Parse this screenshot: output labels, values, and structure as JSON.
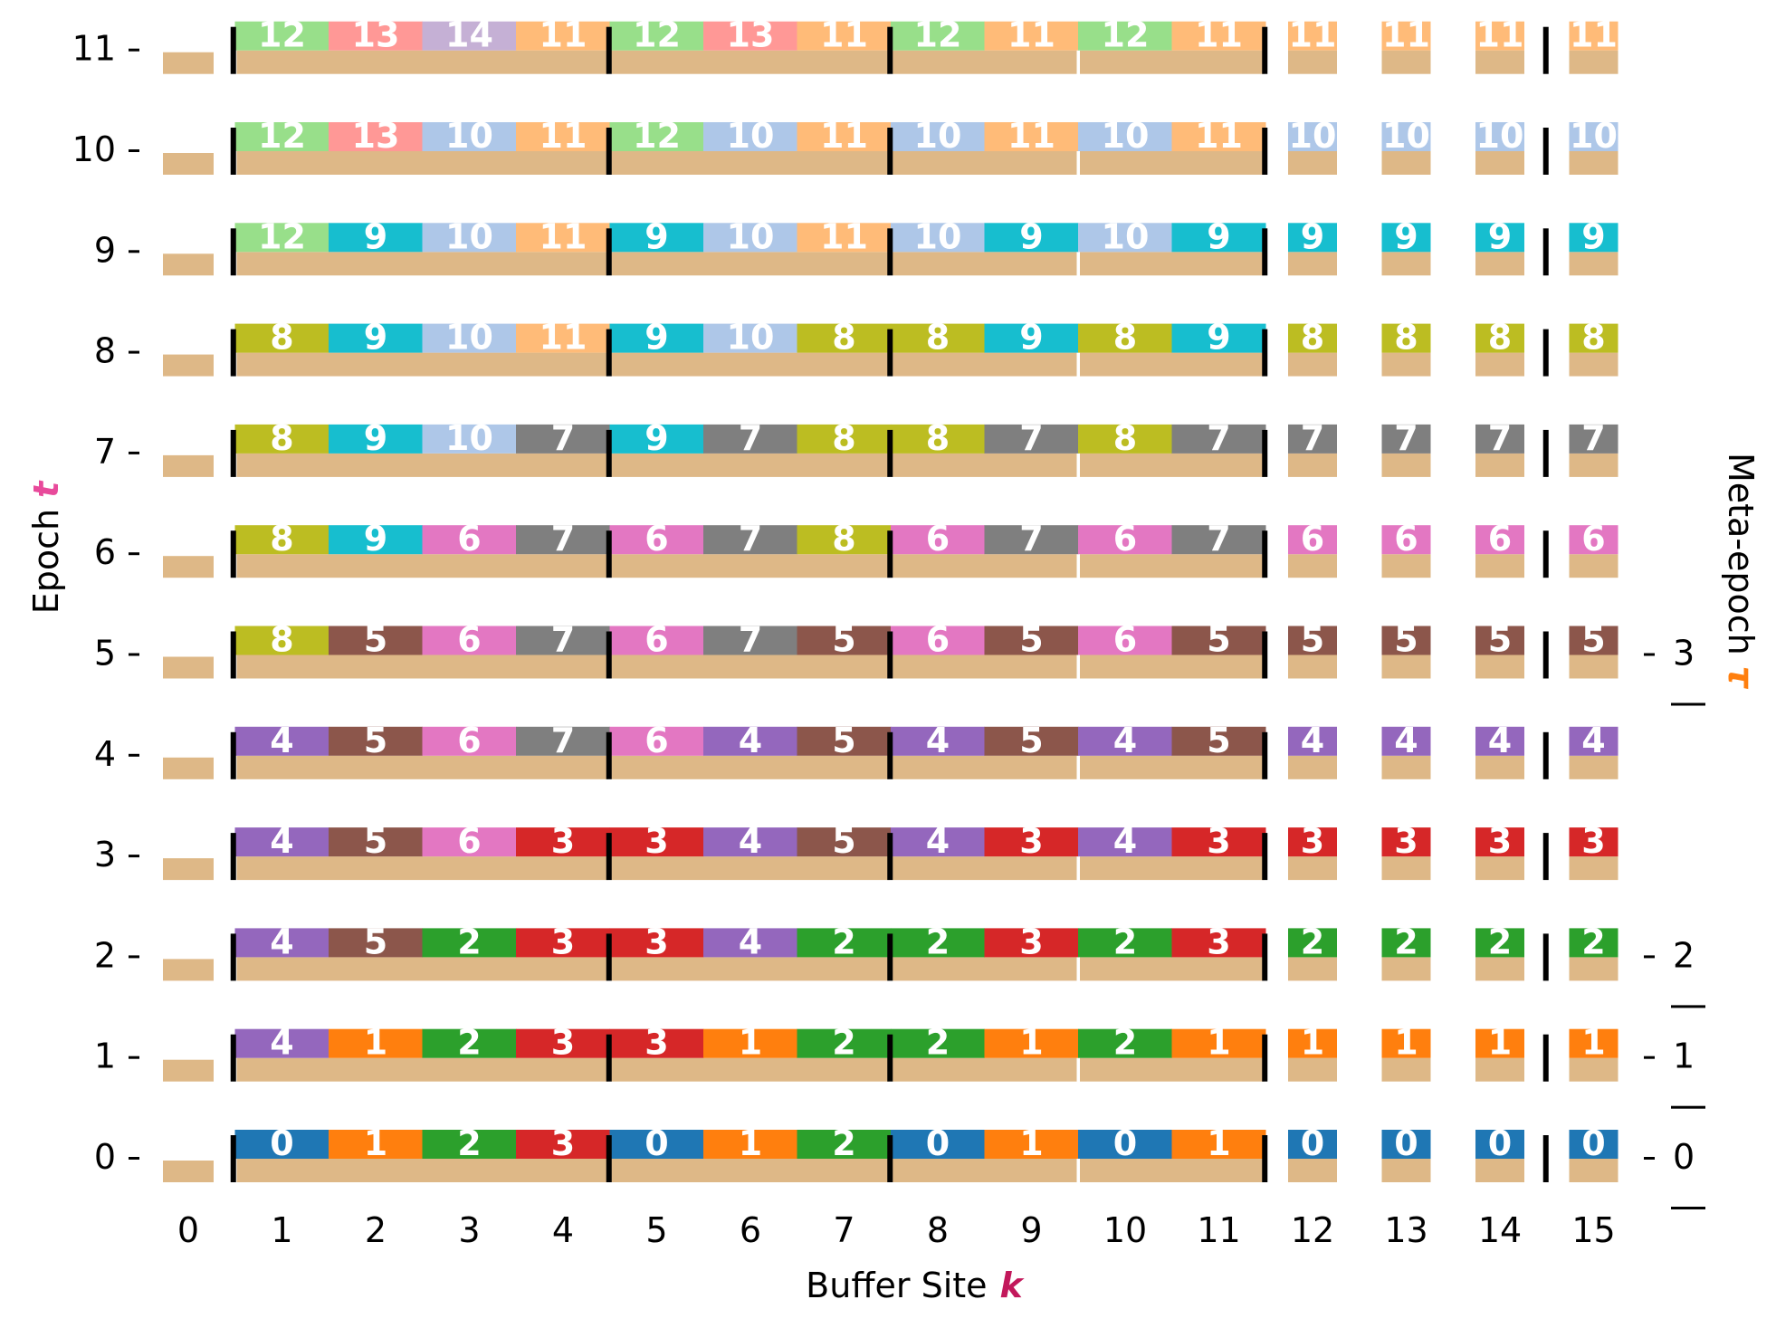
{
  "chart_data": {
    "type": "heatmap",
    "xlabel": "Buffer Site",
    "xlabel_symbol": "k",
    "ylabel": "Epoch",
    "ylabel_symbol": "t",
    "right_label": "Meta-epoch",
    "right_label_symbol": "τ",
    "x_ticks": [
      "0",
      "1",
      "2",
      "3",
      "4",
      "5",
      "6",
      "7",
      "8",
      "9",
      "10",
      "11",
      "12",
      "13",
      "14",
      "15"
    ],
    "y_ticks": [
      "0",
      "1",
      "2",
      "3",
      "4",
      "5",
      "6",
      "7",
      "8",
      "9",
      "10",
      "11"
    ],
    "meta_epoch_ticks": [
      {
        "label": "0",
        "epoch": 0
      },
      {
        "label": "1",
        "epoch": 1
      },
      {
        "label": "2",
        "epoch": 2
      },
      {
        "label": "3",
        "epoch": 5
      }
    ],
    "separators_after_sites": [
      0,
      4,
      7,
      11,
      14
    ],
    "colors": {
      "base": "#deb887",
      "separator": "#000000",
      "0": "#1f77b4",
      "1": "#ff7f0e",
      "2": "#2ca02c",
      "3": "#d62728",
      "4": "#9467bd",
      "5": "#8c564b",
      "6": "#e377c2",
      "7": "#7f7f7f",
      "8": "#bcbd22",
      "9": "#17becf",
      "10": "#aec7e8",
      "11": "#ffbb78",
      "12": "#98df8a",
      "13": "#ff9896",
      "14": "#c5b0d5"
    },
    "epochs": [
      {
        "epoch": 0,
        "sites": [
          null,
          0,
          1,
          2,
          3,
          0,
          1,
          2,
          0,
          1,
          0,
          1,
          0,
          0,
          0,
          0
        ]
      },
      {
        "epoch": 1,
        "sites": [
          null,
          4,
          1,
          2,
          3,
          3,
          1,
          2,
          2,
          1,
          2,
          1,
          1,
          1,
          1,
          1
        ]
      },
      {
        "epoch": 2,
        "sites": [
          null,
          4,
          5,
          2,
          3,
          3,
          4,
          2,
          2,
          3,
          2,
          3,
          2,
          2,
          2,
          2
        ]
      },
      {
        "epoch": 3,
        "sites": [
          null,
          4,
          5,
          6,
          3,
          3,
          4,
          5,
          4,
          3,
          4,
          3,
          3,
          3,
          3,
          3
        ]
      },
      {
        "epoch": 4,
        "sites": [
          null,
          4,
          5,
          6,
          7,
          6,
          4,
          5,
          4,
          5,
          4,
          5,
          4,
          4,
          4,
          4
        ]
      },
      {
        "epoch": 5,
        "sites": [
          null,
          8,
          5,
          6,
          7,
          6,
          7,
          5,
          6,
          5,
          6,
          5,
          5,
          5,
          5,
          5
        ]
      },
      {
        "epoch": 6,
        "sites": [
          null,
          8,
          9,
          6,
          7,
          6,
          7,
          8,
          6,
          7,
          6,
          7,
          6,
          6,
          6,
          6
        ]
      },
      {
        "epoch": 7,
        "sites": [
          null,
          8,
          9,
          10,
          7,
          9,
          7,
          8,
          8,
          7,
          8,
          7,
          7,
          7,
          7,
          7
        ]
      },
      {
        "epoch": 8,
        "sites": [
          null,
          8,
          9,
          10,
          11,
          9,
          10,
          8,
          8,
          9,
          8,
          9,
          8,
          8,
          8,
          8
        ]
      },
      {
        "epoch": 9,
        "sites": [
          null,
          12,
          9,
          10,
          11,
          9,
          10,
          11,
          10,
          9,
          10,
          9,
          9,
          9,
          9,
          9
        ]
      },
      {
        "epoch": 10,
        "sites": [
          null,
          12,
          13,
          10,
          11,
          12,
          10,
          11,
          10,
          11,
          10,
          11,
          10,
          10,
          10,
          10
        ]
      },
      {
        "epoch": 11,
        "sites": [
          null,
          12,
          13,
          14,
          11,
          12,
          13,
          11,
          12,
          11,
          12,
          11,
          11,
          11,
          11,
          11
        ]
      }
    ]
  }
}
